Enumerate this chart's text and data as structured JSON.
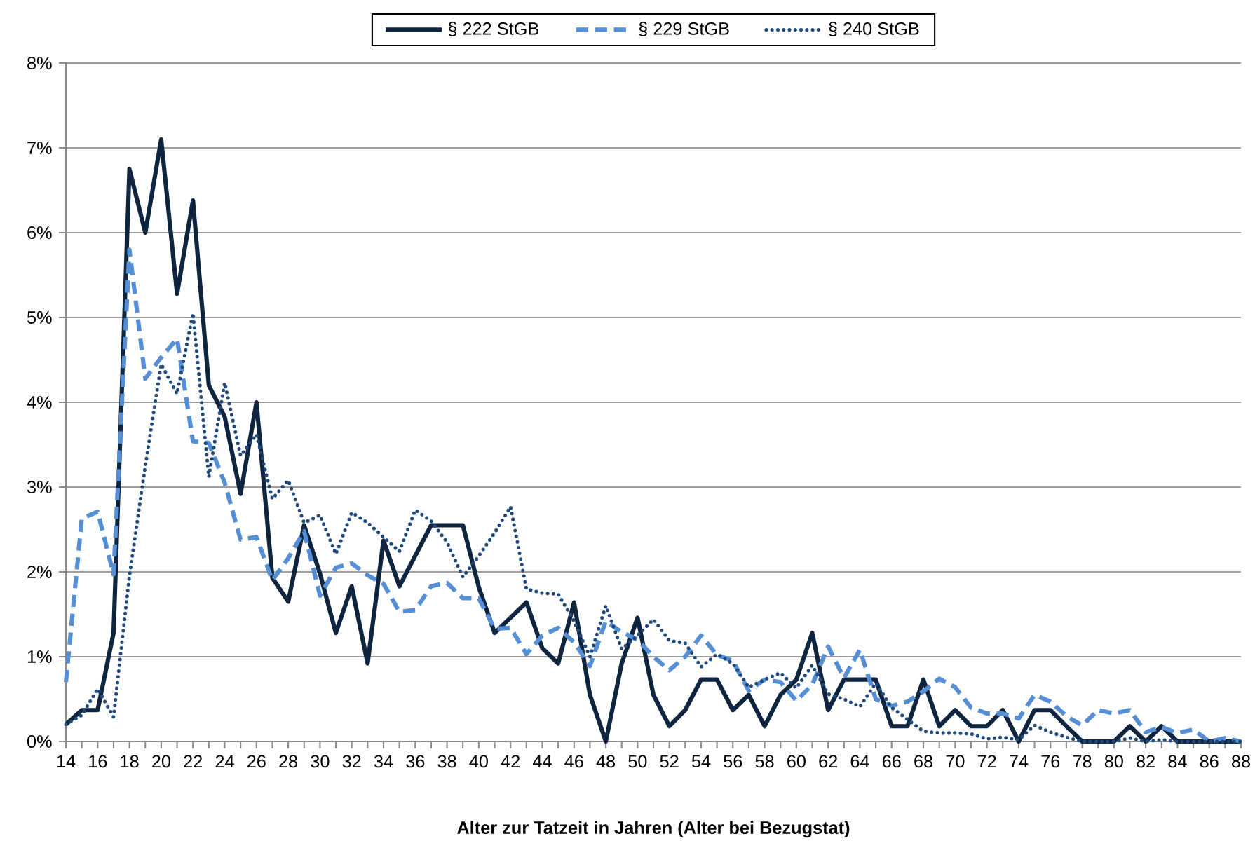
{
  "chart_data": {
    "type": "line",
    "xlabel": "Alter zur Tatzeit in Jahren (Alter bei Bezugstat)",
    "x": [
      14,
      15,
      16,
      17,
      18,
      19,
      20,
      21,
      22,
      23,
      24,
      25,
      26,
      27,
      28,
      29,
      30,
      31,
      32,
      33,
      34,
      35,
      36,
      37,
      38,
      39,
      40,
      41,
      42,
      43,
      44,
      45,
      46,
      47,
      48,
      49,
      50,
      51,
      52,
      53,
      54,
      55,
      56,
      57,
      58,
      59,
      60,
      61,
      62,
      63,
      64,
      65,
      66,
      67,
      68,
      69,
      70,
      71,
      72,
      73,
      74,
      75,
      76,
      77,
      78,
      79,
      80,
      81,
      82,
      83,
      84,
      85,
      86,
      87,
      88
    ],
    "series": [
      {
        "name": "§ 222 StGB",
        "color": "#0f243e",
        "line_style": "solid",
        "values": [
          0.2,
          0.37,
          0.37,
          1.28,
          6.75,
          6.0,
          7.1,
          5.28,
          6.38,
          4.2,
          3.83,
          2.92,
          4.0,
          1.93,
          1.65,
          2.55,
          1.98,
          1.28,
          1.83,
          0.92,
          2.37,
          1.83,
          2.19,
          2.55,
          2.55,
          2.55,
          1.82,
          1.28,
          1.46,
          1.64,
          1.1,
          0.92,
          1.64,
          0.55,
          0,
          0.92,
          1.46,
          0.55,
          0.18,
          0.37,
          0.73,
          0.73,
          0.37,
          0.55,
          0.18,
          0.55,
          0.73,
          1.28,
          0.37,
          0.73,
          0.73,
          0.73,
          0.18,
          0.18,
          0.73,
          0.18,
          0.37,
          0.18,
          0.18,
          0.37,
          0,
          0.37,
          0.37,
          0.18,
          0,
          0,
          0,
          0.18,
          0,
          0.18,
          0,
          0,
          0,
          0,
          0
        ]
      },
      {
        "name": "§ 229 StGB",
        "color": "#558ed5",
        "line_style": "dashed",
        "values": [
          0.7,
          2.63,
          2.71,
          1.97,
          5.8,
          4.28,
          4.53,
          4.75,
          3.54,
          3.52,
          3.05,
          2.38,
          2.41,
          1.9,
          2.16,
          2.48,
          1.72,
          2.05,
          2.1,
          1.96,
          1.86,
          1.53,
          1.55,
          1.83,
          1.87,
          1.69,
          1.69,
          1.33,
          1.34,
          1.03,
          1.25,
          1.34,
          1.17,
          0.89,
          1.42,
          1.29,
          1.2,
          1.0,
          0.84,
          1.0,
          1.25,
          1.02,
          0.95,
          0.6,
          0.73,
          0.7,
          0.48,
          0.67,
          1.12,
          0.75,
          1.08,
          0.5,
          0.42,
          0.47,
          0.59,
          0.74,
          0.64,
          0.4,
          0.33,
          0.33,
          0.27,
          0.55,
          0.47,
          0.3,
          0.19,
          0.37,
          0.33,
          0.37,
          0.11,
          0.17,
          0.1,
          0.14,
          0,
          0.04,
          0
        ]
      },
      {
        "name": "§ 240 StGB",
        "color": "#1f497d",
        "line_style": "dotted",
        "values": [
          0.2,
          0.31,
          0.62,
          0.29,
          1.95,
          3.25,
          4.45,
          4.1,
          5.05,
          3.12,
          4.23,
          3.37,
          3.62,
          2.86,
          3.08,
          2.58,
          2.67,
          2.21,
          2.7,
          2.58,
          2.41,
          2.24,
          2.73,
          2.6,
          2.35,
          1.94,
          2.19,
          2.46,
          2.77,
          1.8,
          1.75,
          1.74,
          1.42,
          1.0,
          1.6,
          1.09,
          1.25,
          1.44,
          1.19,
          1.16,
          0.88,
          1.03,
          0.92,
          0.64,
          0.73,
          0.81,
          0.63,
          0.9,
          0.56,
          0.5,
          0.41,
          0.69,
          0.4,
          0.26,
          0.12,
          0.1,
          0.1,
          0.09,
          0.03,
          0.05,
          0.02,
          0.19,
          0.11,
          0.05,
          0,
          0,
          0,
          0.04,
          0,
          0.02,
          0,
          0,
          0,
          0,
          0
        ]
      }
    ],
    "xlim": [
      14,
      88
    ],
    "xticks": [
      14,
      {
        "value": 15,
        "label": null
      },
      16,
      {
        "value": 17,
        "label": null
      },
      18,
      {
        "value": 19,
        "label": null
      },
      20,
      {
        "value": 21,
        "label": null
      },
      22,
      {
        "value": 23,
        "label": null
      },
      24,
      {
        "value": 25,
        "label": null
      },
      26,
      {
        "value": 27,
        "label": null
      },
      28,
      {
        "value": 29,
        "label": null
      },
      30,
      {
        "value": 31,
        "label": null
      },
      32,
      {
        "value": 33,
        "label": null
      },
      34,
      {
        "value": 35,
        "label": null
      },
      36,
      {
        "value": 37,
        "label": null
      },
      38,
      {
        "value": 39,
        "label": null
      },
      40,
      {
        "value": 41,
        "label": null
      },
      42,
      {
        "value": 43,
        "label": null
      },
      44,
      {
        "value": 45,
        "label": null
      },
      46,
      {
        "value": 47,
        "label": null
      },
      48,
      {
        "value": 49,
        "label": null
      },
      50,
      {
        "value": 51,
        "label": null
      },
      52,
      {
        "value": 53,
        "label": null
      },
      54,
      {
        "value": 55,
        "label": null
      },
      56,
      {
        "value": 57,
        "label": null
      },
      58,
      {
        "value": 59,
        "label": null
      },
      60,
      {
        "value": 61,
        "label": null
      },
      62,
      {
        "value": 63,
        "label": null
      },
      64,
      {
        "value": 65,
        "label": null
      },
      66,
      {
        "value": 67,
        "label": null
      },
      68,
      {
        "value": 69,
        "label": null
      },
      70,
      {
        "value": 71,
        "label": null
      },
      72,
      {
        "value": 73,
        "label": null
      },
      74,
      {
        "value": 75,
        "label": null
      },
      76,
      {
        "value": 77,
        "label": null
      },
      78,
      {
        "value": 79,
        "label": null
      },
      80,
      {
        "value": 81,
        "label": null
      },
      82,
      {
        "value": 83,
        "label": null
      },
      84,
      {
        "value": 85,
        "label": null
      },
      86,
      {
        "value": 87,
        "label": null
      },
      88
    ],
    "ylim": [
      0,
      8
    ],
    "yticks": [
      {
        "value": 0,
        "label": "0%"
      },
      {
        "value": 1,
        "label": "1%"
      },
      {
        "value": 2,
        "label": "2%"
      },
      {
        "value": 3,
        "label": "3%"
      },
      {
        "value": 4,
        "label": "4%"
      },
      {
        "value": 5,
        "label": "5%"
      },
      {
        "value": 6,
        "label": "6%"
      },
      {
        "value": 7,
        "label": "7%"
      },
      {
        "value": 8,
        "label": "8%"
      }
    ],
    "grid": "y",
    "legend": "top"
  }
}
